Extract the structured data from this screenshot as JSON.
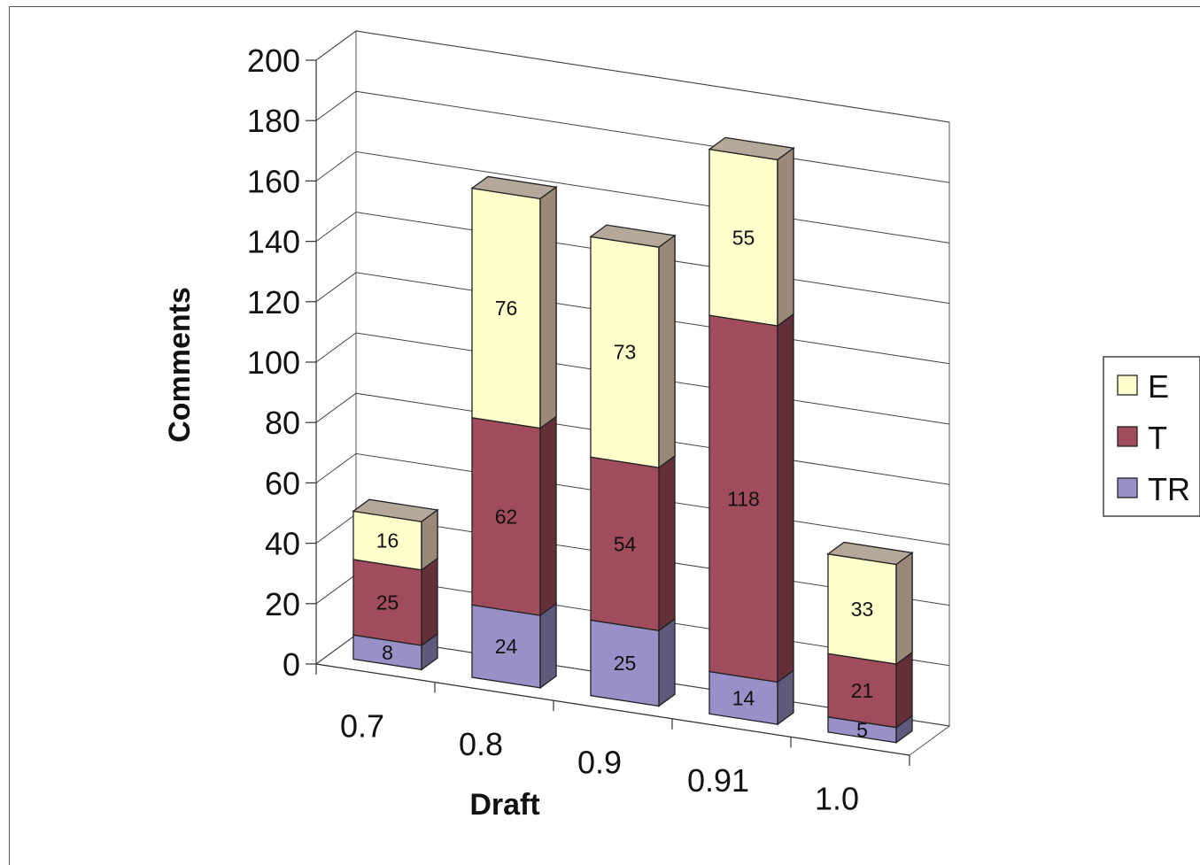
{
  "chart_data": {
    "type": "bar",
    "stacked": true,
    "three_d": true,
    "title": "",
    "xlabel": "Draft",
    "ylabel": "Comments",
    "categories": [
      "0.7",
      "0.8",
      "0.9",
      "0.91",
      "1.0"
    ],
    "ylim": [
      0,
      200
    ],
    "yticks": [
      0,
      20,
      40,
      60,
      80,
      100,
      120,
      140,
      160,
      180,
      200
    ],
    "grid": true,
    "legend_position": "right",
    "series": [
      {
        "name": "TR",
        "values": [
          8,
          24,
          25,
          14,
          5
        ],
        "color": "#9990c8"
      },
      {
        "name": "T",
        "values": [
          25,
          62,
          54,
          118,
          21
        ],
        "color": "#a04c5c"
      },
      {
        "name": "E",
        "values": [
          16,
          76,
          73,
          55,
          33
        ],
        "color": "#ffffcc"
      }
    ],
    "legend_order": [
      "E",
      "T",
      "TR"
    ]
  }
}
